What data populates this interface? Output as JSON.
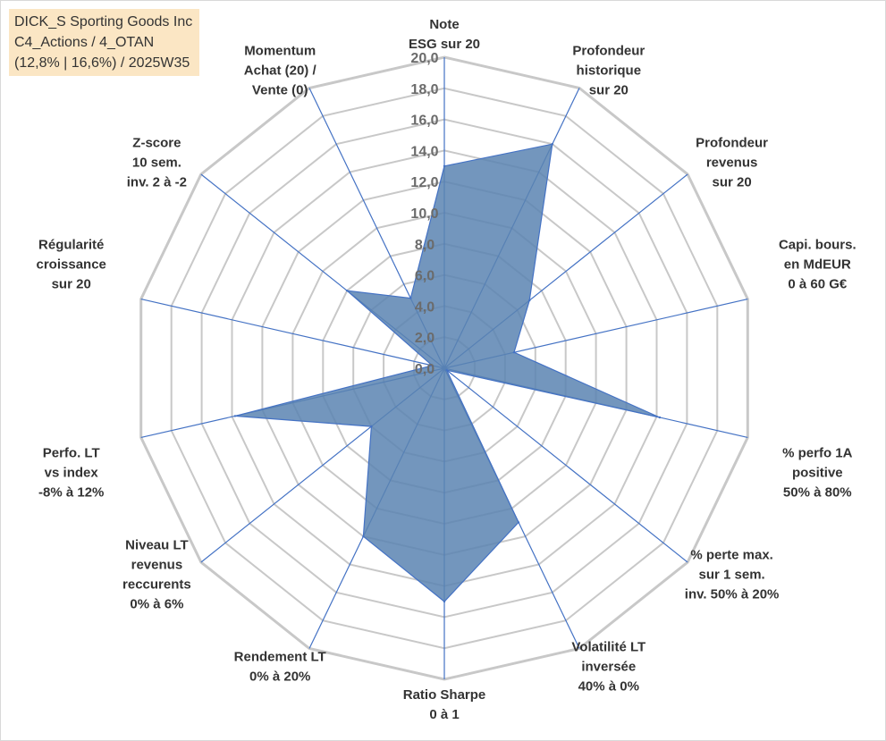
{
  "info_box": {
    "line1": "DICK_S Sporting Goods Inc",
    "line2": "C4_Actions / 4_OTAN",
    "line3": "(12,8% | 16,6%) / 2025W35"
  },
  "chart_data": {
    "type": "radar",
    "title": "",
    "axes": [
      {
        "label_lines": [
          "Note",
          "ESG sur 20"
        ]
      },
      {
        "label_lines": [
          "Profondeur",
          "historique",
          "sur 20"
        ]
      },
      {
        "label_lines": [
          "Profondeur",
          "revenus",
          "sur 20"
        ]
      },
      {
        "label_lines": [
          "Capi. bours.",
          "en MdEUR",
          "0 à 60 G€"
        ]
      },
      {
        "label_lines": [
          "% perfo 1A",
          "positive",
          "50% à 80%"
        ]
      },
      {
        "label_lines": [
          "% perte max.",
          "sur 1 sem.",
          "inv. 50% à 20%"
        ]
      },
      {
        "label_lines": [
          "Volatilité LT",
          "inversée",
          "40% à 0%"
        ]
      },
      {
        "label_lines": [
          "Ratio Sharpe",
          "0 à 1"
        ]
      },
      {
        "label_lines": [
          "Rendement LT",
          "0% à 20%"
        ]
      },
      {
        "label_lines": [
          "Niveau LT",
          "revenus",
          "reccurents",
          "0% à 6%"
        ]
      },
      {
        "label_lines": [
          "Perfo. LT",
          "vs index",
          "-8% à 12%"
        ]
      },
      {
        "label_lines": [
          "Régularité",
          "croissance",
          "sur 20"
        ]
      },
      {
        "label_lines": [
          "Z-score",
          "10 sem.",
          "inv. 2 à -2"
        ]
      },
      {
        "label_lines": [
          "Momentum",
          "Achat (20) /",
          "Vente (0)"
        ]
      }
    ],
    "series": [
      {
        "values": [
          13.0,
          16.0,
          7.0,
          4.6,
          14.2,
          0.2,
          11.0,
          15.0,
          12.0,
          6.0,
          13.8,
          0.8,
          8.0,
          5.0
        ]
      }
    ],
    "r_range": [
      0,
      20
    ],
    "r_ticks": [
      "0,0",
      "2,0",
      "4,0",
      "6,0",
      "8,0",
      "10,0",
      "12,0",
      "14,0",
      "16,0",
      "18,0",
      "20,0"
    ],
    "grid": true,
    "legend": "none",
    "colors": {
      "fill": "#5b84b1",
      "stroke": "#4472c4",
      "spoke": "#4472c4",
      "grid": "#c8c8c8"
    }
  }
}
